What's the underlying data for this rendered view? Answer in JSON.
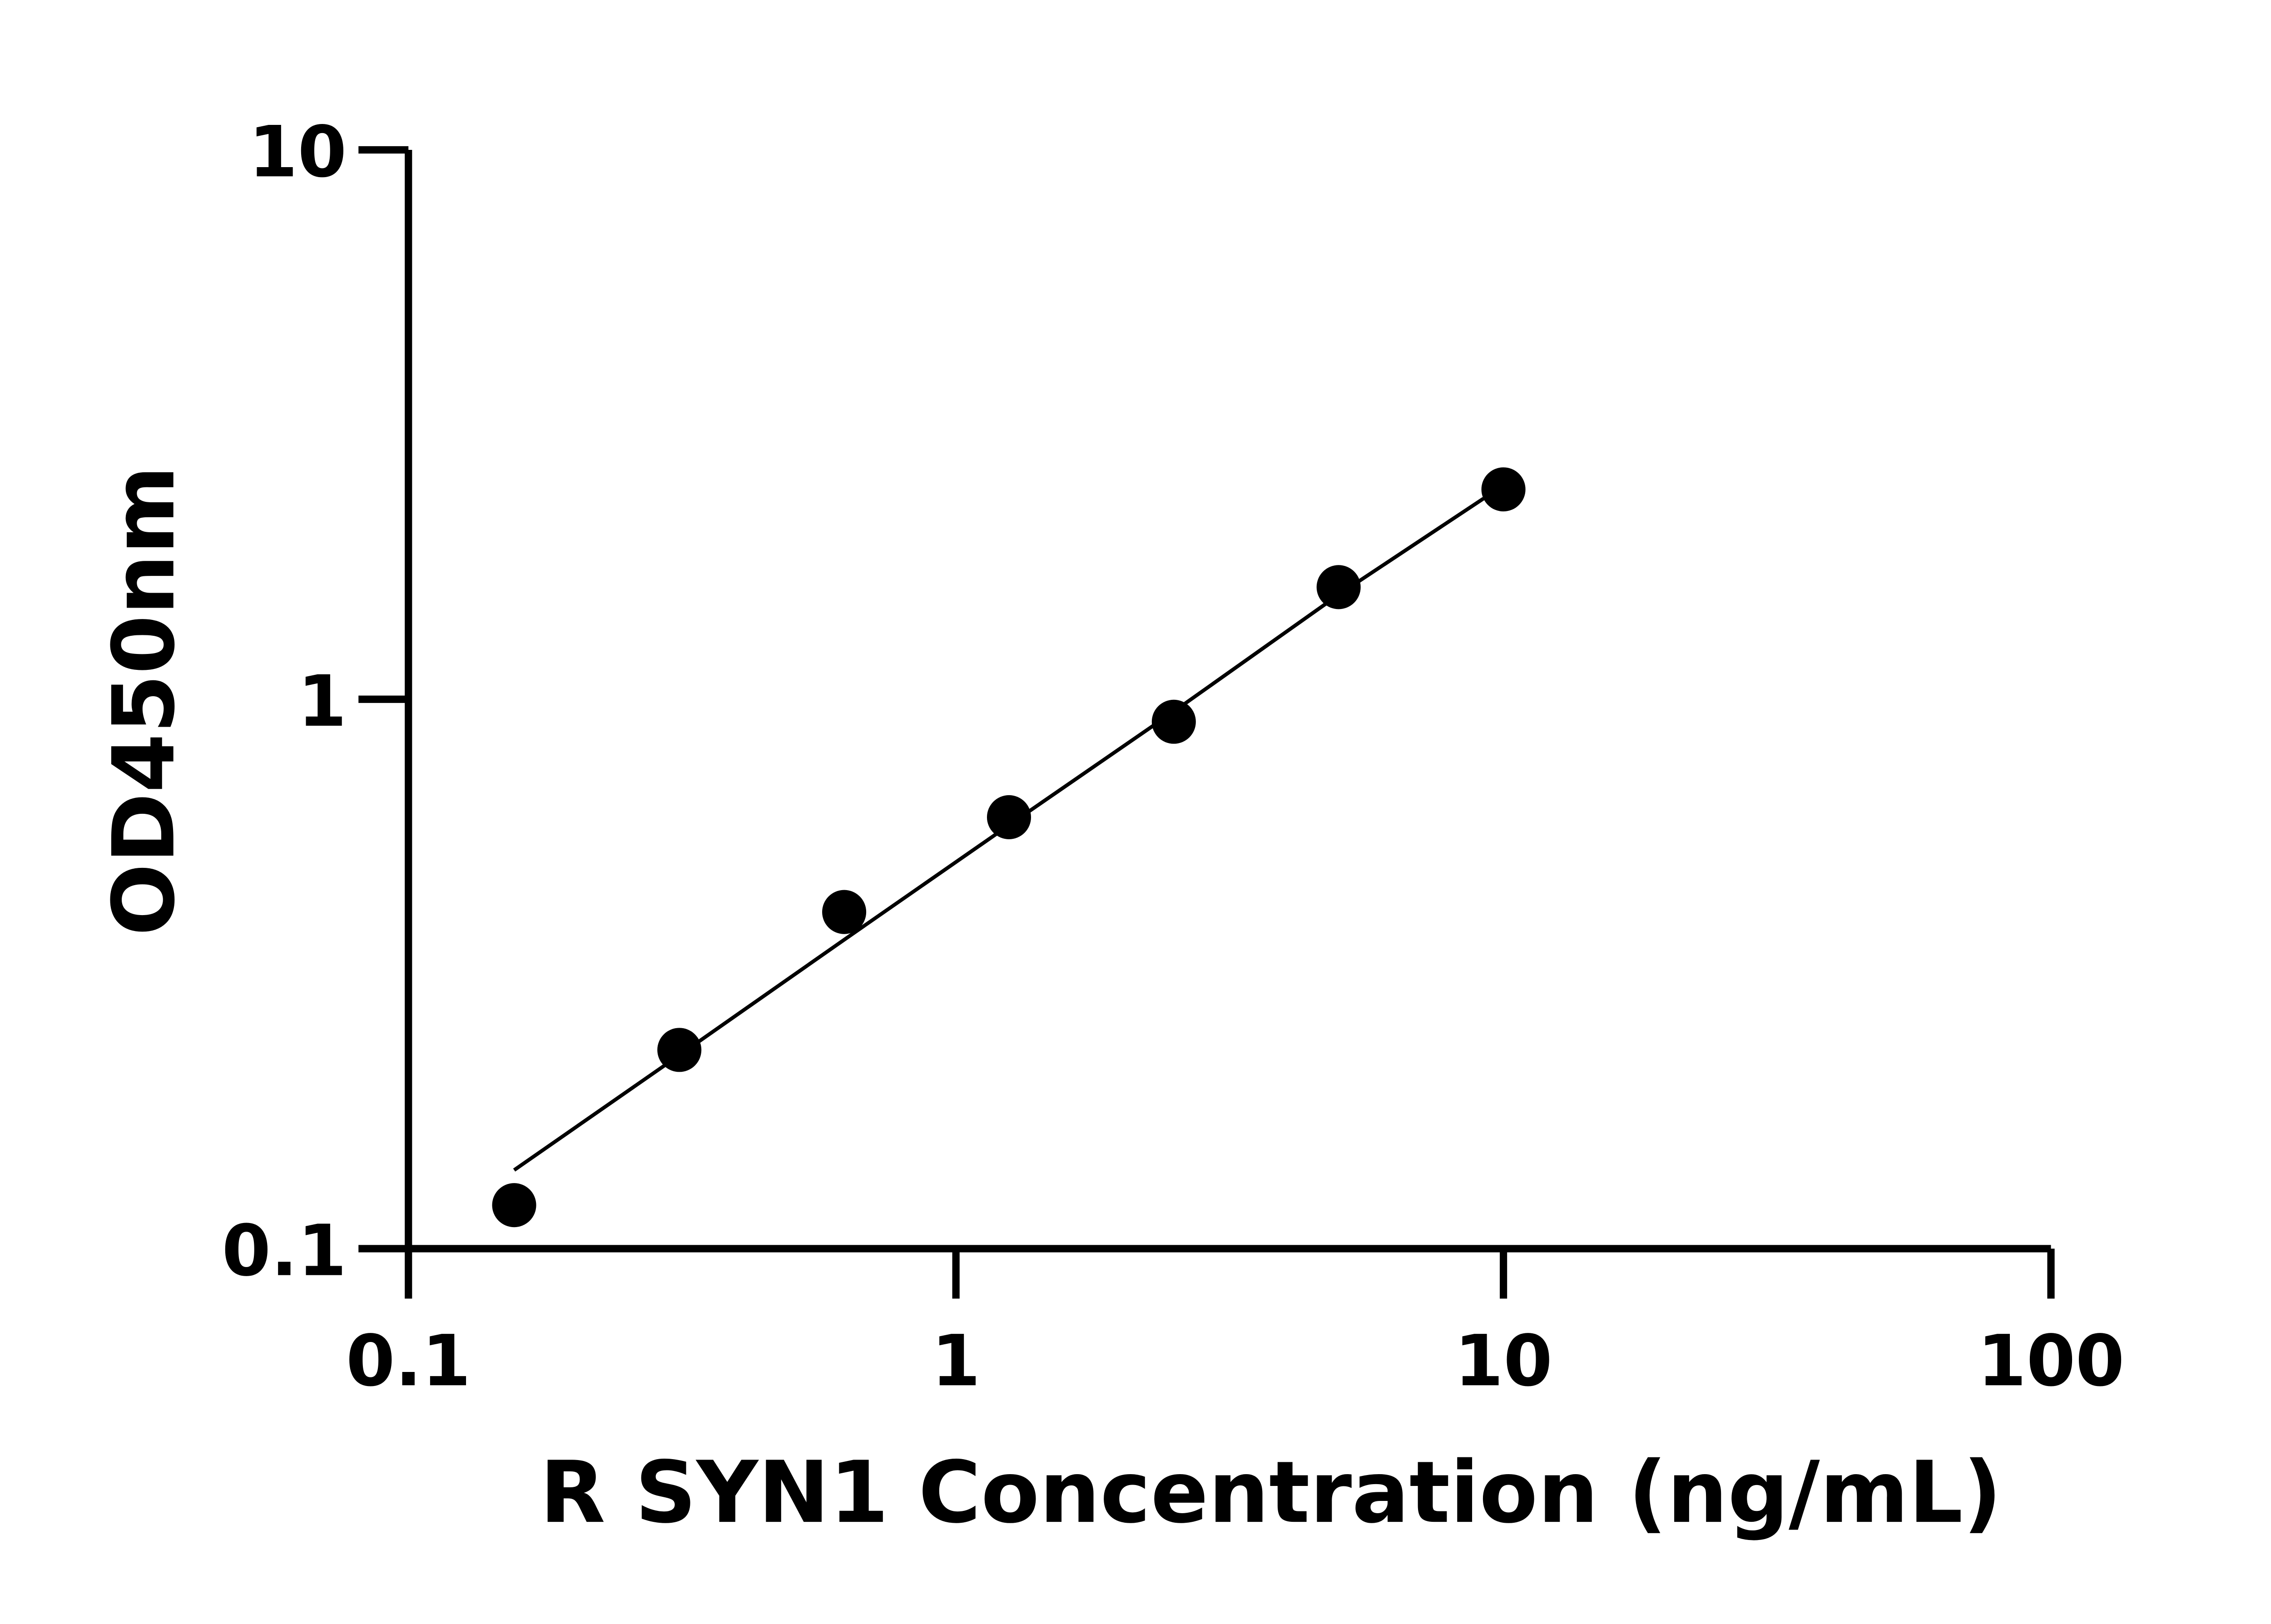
{
  "chart_data": {
    "type": "scatter",
    "title": "",
    "xlabel": "R SYN1 Concentration (ng/mL)",
    "ylabel": "OD450nm",
    "x_scale": "log",
    "y_scale": "log",
    "xlim": [
      0.1,
      100
    ],
    "ylim": [
      0.1,
      10
    ],
    "x_ticks": [
      "0.1",
      "1",
      "10",
      "100"
    ],
    "y_ticks": [
      "0.1",
      "1",
      "10"
    ],
    "grid": false,
    "points": {
      "x": [
        0.156,
        0.3125,
        0.625,
        1.25,
        2.5,
        5,
        10
      ],
      "y": [
        0.12,
        0.23,
        0.41,
        0.61,
        0.91,
        1.6,
        2.41
      ]
    },
    "fit_curve": {
      "x": [
        0.156,
        0.3125,
        0.625,
        1.25,
        2.5,
        5,
        9.2
      ],
      "y": [
        0.139,
        0.225,
        0.365,
        0.59,
        0.95,
        1.55,
        2.32
      ]
    },
    "colors": {
      "points": "#000000",
      "line": "#000000"
    }
  }
}
